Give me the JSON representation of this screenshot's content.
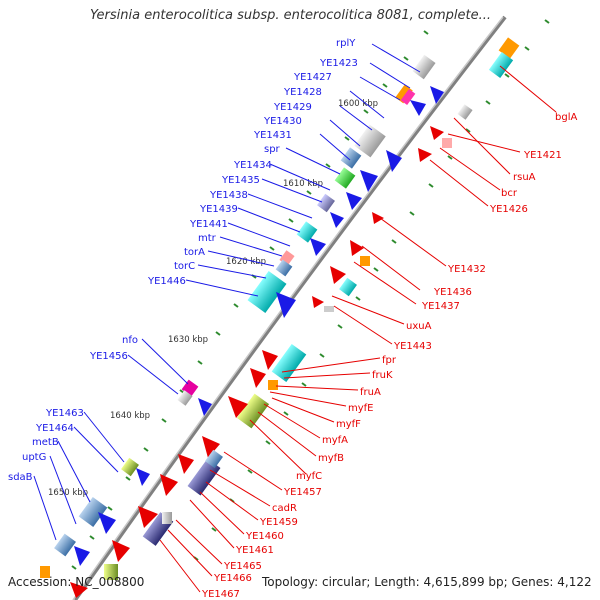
{
  "header": {
    "title": "Yersinia enterocolitica subsp. enterocolitica 8081, complete..."
  },
  "footer": {
    "accession": "Accession: NC_008800",
    "topology": "Topology: circular; Length: 4,615,899 bp; Genes: 4,122"
  },
  "map": {
    "scale_labels": [
      "1600 kbp",
      "1610 kbp",
      "1620 kbp",
      "1630 kbp",
      "1640 kbp",
      "1650 kbp"
    ],
    "forward_genes": [
      "rplY",
      "YE1423",
      "YE1427",
      "YE1428",
      "YE1429",
      "YE1430",
      "YE1431",
      "spr",
      "YE1434",
      "YE1435",
      "YE1438",
      "YE1439",
      "YE1441",
      "mtr",
      "torA",
      "torC",
      "YE1446",
      "nfo",
      "YE1456",
      "YE1463",
      "YE1464",
      "metB",
      "uptG",
      "sdaB"
    ],
    "reverse_genes": [
      "bglA",
      "YE1421",
      "rsuA",
      "bcr",
      "YE1426",
      "YE1432",
      "YE1436",
      "YE1437",
      "uxuA",
      "YE1443",
      "fpr",
      "fruK",
      "fruA",
      "myfE",
      "myfF",
      "myfA",
      "myfB",
      "myfC",
      "YE1457",
      "cadR",
      "YE1459",
      "YE1460",
      "YE1461",
      "YE1465",
      "YE1466",
      "YE1467"
    ],
    "colors": {
      "forward": "#1a1ae6",
      "reverse": "#e60000",
      "backbone": "#808080",
      "ticks": "#2e8b2e"
    }
  }
}
